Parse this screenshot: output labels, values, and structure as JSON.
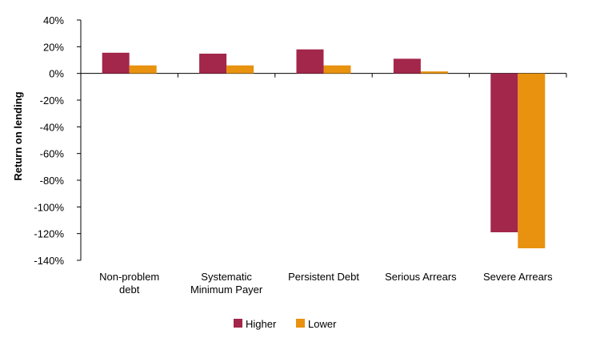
{
  "chart_data": {
    "type": "bar",
    "title": "",
    "xlabel": "",
    "ylabel": "Return on lending",
    "categories": [
      [
        "Non-problem",
        "debt"
      ],
      [
        "Systematic",
        "Minimum Payer"
      ],
      [
        "Persistent Debt"
      ],
      [
        "Serious Arrears"
      ],
      [
        "Severe Arrears"
      ]
    ],
    "series": [
      {
        "name": "Higher",
        "color": "#a3264b",
        "values": [
          15.5,
          14.8,
          18.0,
          11.0,
          -119.0
        ]
      },
      {
        "name": "Lower",
        "color": "#e8920f",
        "values": [
          6.0,
          6.0,
          6.0,
          1.5,
          -131.0
        ]
      }
    ],
    "ylim": [
      -140,
      40
    ],
    "yticks": [
      40,
      20,
      0,
      -20,
      -40,
      -60,
      -80,
      -100,
      -120,
      -140
    ],
    "ytick_labels": [
      "40%",
      "20%",
      "0%",
      "-20%",
      "-40%",
      "-60%",
      "-80%",
      "-100%",
      "-120%",
      "-140%"
    ],
    "grid": false,
    "legend_position": "bottom-center"
  }
}
